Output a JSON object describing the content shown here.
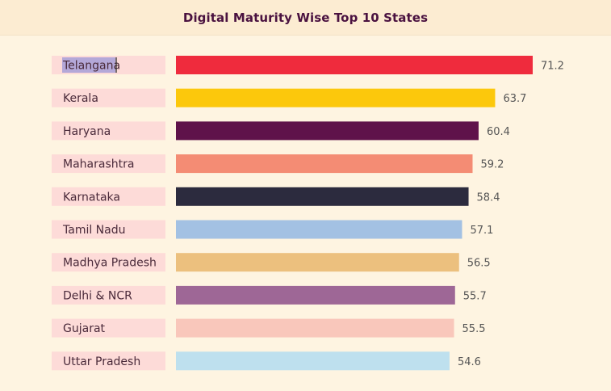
{
  "title": "Digital Maturity Wise Top 10 States",
  "chart_data": {
    "type": "bar",
    "orientation": "horizontal",
    "title": "Digital Maturity Wise Top 10 States",
    "categories": [
      "Telangana",
      "Kerala",
      "Haryana",
      "Maharashtra",
      "Karnataka",
      "Tamil Nadu",
      "Madhya Pradesh",
      "Delhi & NCR",
      "Gujarat",
      "Uttar Pradesh"
    ],
    "values": [
      71.2,
      63.7,
      60.4,
      59.2,
      58.4,
      57.1,
      56.5,
      55.7,
      55.5,
      54.6
    ],
    "value_labels": [
      "71.2",
      "63.7",
      "60.4",
      "59.2",
      "58.4",
      "57.1",
      "56.5",
      "55.7",
      "55.5",
      "54.6"
    ],
    "colors": [
      "#ef2b3d",
      "#fcc80c",
      "#5f124a",
      "#f48c74",
      "#2c2b3e",
      "#a3c1e3",
      "#ecc07e",
      "#9e6796",
      "#f9c7bb",
      "#bee0ee"
    ],
    "xlim": [
      0,
      75
    ],
    "grid": false,
    "legend": "none",
    "xlabel": "",
    "ylabel": ""
  }
}
